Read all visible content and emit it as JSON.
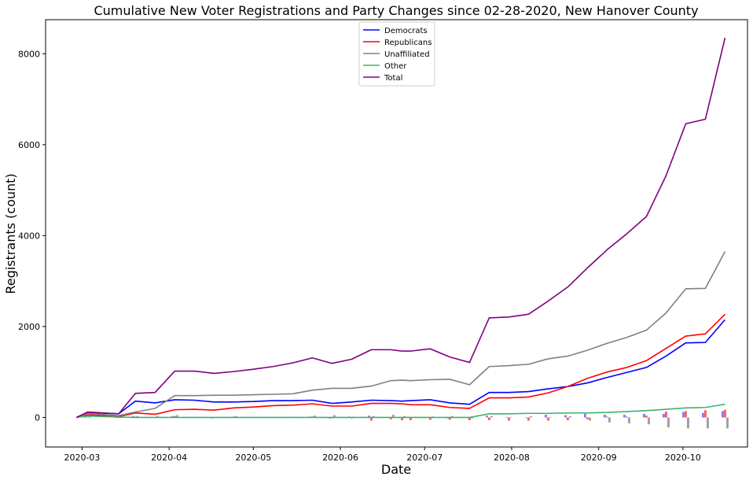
{
  "chart_data": {
    "type": "line",
    "title": "Cumulative New Voter Registrations and Party Changes since 02-28-2020, New Hanover County",
    "xlabel": "Date",
    "ylabel": "Registrants (count)",
    "ylim": [
      -650,
      8750
    ],
    "xlim": [
      "2020-02-17",
      "2020-10-24"
    ],
    "x_ticks": [
      {
        "date": "2020-03-01",
        "label": "2020-03"
      },
      {
        "date": "2020-04-01",
        "label": "2020-04"
      },
      {
        "date": "2020-05-01",
        "label": "2020-05"
      },
      {
        "date": "2020-06-01",
        "label": "2020-06"
      },
      {
        "date": "2020-07-01",
        "label": "2020-07"
      },
      {
        "date": "2020-08-01",
        "label": "2020-08"
      },
      {
        "date": "2020-09-01",
        "label": "2020-09"
      },
      {
        "date": "2020-10-01",
        "label": "2020-10"
      }
    ],
    "y_ticks": [
      0,
      2000,
      4000,
      6000,
      8000
    ],
    "grid": false,
    "legend_position": "top-center",
    "x": [
      "2020-02-28",
      "2020-03-03",
      "2020-03-14",
      "2020-03-20",
      "2020-03-27",
      "2020-04-03",
      "2020-04-10",
      "2020-04-17",
      "2020-04-24",
      "2020-05-01",
      "2020-05-08",
      "2020-05-15",
      "2020-05-22",
      "2020-05-29",
      "2020-06-05",
      "2020-06-12",
      "2020-06-19",
      "2020-06-23",
      "2020-06-26",
      "2020-07-03",
      "2020-07-10",
      "2020-07-17",
      "2020-07-24",
      "2020-07-31",
      "2020-08-07",
      "2020-08-14",
      "2020-08-21",
      "2020-08-28",
      "2020-09-04",
      "2020-09-11",
      "2020-09-18",
      "2020-09-25",
      "2020-10-02",
      "2020-10-09",
      "2020-10-16"
    ],
    "series": [
      {
        "name": "Democrats",
        "color": "#0000ff",
        "values": [
          0,
          110,
          80,
          360,
          320,
          390,
          380,
          340,
          340,
          350,
          370,
          370,
          380,
          310,
          340,
          380,
          370,
          360,
          370,
          390,
          320,
          290,
          550,
          550,
          570,
          630,
          680,
          760,
          880,
          990,
          1100,
          1350,
          1640,
          1650,
          2150
        ]
      },
      {
        "name": "Republicans",
        "color": "#ff0000",
        "values": [
          0,
          60,
          20,
          100,
          70,
          170,
          180,
          160,
          210,
          230,
          260,
          270,
          300,
          250,
          250,
          310,
          310,
          300,
          280,
          280,
          220,
          200,
          430,
          430,
          450,
          540,
          680,
          860,
          1000,
          1100,
          1250,
          1520,
          1790,
          1840,
          2270
        ]
      },
      {
        "name": "Unaffiliated",
        "color": "#808080",
        "values": [
          0,
          90,
          40,
          120,
          200,
          480,
          480,
          490,
          490,
          500,
          510,
          520,
          600,
          640,
          640,
          690,
          810,
          820,
          810,
          830,
          840,
          720,
          1120,
          1140,
          1170,
          1290,
          1350,
          1480,
          1630,
          1760,
          1920,
          2300,
          2830,
          2840,
          3650
        ]
      },
      {
        "name": "Other",
        "color": "#3cb371",
        "values": [
          0,
          30,
          10,
          0,
          0,
          0,
          0,
          0,
          0,
          0,
          0,
          0,
          0,
          0,
          0,
          0,
          0,
          0,
          0,
          0,
          0,
          0,
          80,
          80,
          90,
          90,
          100,
          100,
          110,
          130,
          150,
          180,
          210,
          220,
          290
        ]
      },
      {
        "name": "Total",
        "color": "#800080",
        "values": [
          0,
          120,
          80,
          530,
          550,
          1020,
          1020,
          970,
          1010,
          1060,
          1120,
          1200,
          1310,
          1190,
          1280,
          1490,
          1490,
          1460,
          1460,
          1510,
          1330,
          1210,
          2190,
          2210,
          2270,
          2560,
          2870,
          3290,
          3690,
          4040,
          4420,
          5320,
          6460,
          6560,
          8350
        ]
      }
    ],
    "weekly_changes": {
      "type": "bar",
      "dates": [
        "2020-03-03",
        "2020-03-14",
        "2020-03-20",
        "2020-03-27",
        "2020-04-03",
        "2020-04-10",
        "2020-04-17",
        "2020-04-24",
        "2020-05-01",
        "2020-05-08",
        "2020-05-15",
        "2020-05-22",
        "2020-05-29",
        "2020-06-05",
        "2020-06-12",
        "2020-06-19",
        "2020-06-23",
        "2020-06-26",
        "2020-07-03",
        "2020-07-10",
        "2020-07-17",
        "2020-07-24",
        "2020-07-31",
        "2020-08-07",
        "2020-08-14",
        "2020-08-21",
        "2020-08-28",
        "2020-09-04",
        "2020-09-11",
        "2020-09-18",
        "2020-09-25",
        "2020-10-02",
        "2020-10-09",
        "2020-10-16"
      ],
      "series": [
        {
          "name": "Democrats",
          "color": "#8080ff",
          "values": [
            20,
            -10,
            30,
            -10,
            30,
            -10,
            -20,
            10,
            -10,
            10,
            10,
            20,
            -20,
            20,
            40,
            -10,
            10,
            10,
            10,
            -20,
            -10,
            40,
            10,
            -10,
            60,
            50,
            80,
            60,
            60,
            80,
            80,
            120,
            100,
            140
          ]
        },
        {
          "name": "Republicans",
          "color": "#ff6060",
          "values": [
            10,
            -10,
            20,
            -10,
            30,
            10,
            -10,
            20,
            10,
            10,
            10,
            20,
            -20,
            -20,
            -70,
            -40,
            -60,
            -60,
            -50,
            -50,
            -60,
            -60,
            -70,
            -70,
            -70,
            -60,
            -40,
            20,
            20,
            40,
            130,
            140,
            160,
            170
          ]
        },
        {
          "name": "Unaffiliated",
          "color": "#a0a0a0",
          "values": [
            20,
            -10,
            30,
            30,
            50,
            10,
            10,
            30,
            10,
            10,
            10,
            40,
            50,
            10,
            30,
            60,
            30,
            10,
            20,
            30,
            -20,
            30,
            10,
            30,
            10,
            30,
            -70,
            -110,
            -130,
            -150,
            -220,
            -240,
            -240,
            -240
          ]
        }
      ]
    }
  }
}
